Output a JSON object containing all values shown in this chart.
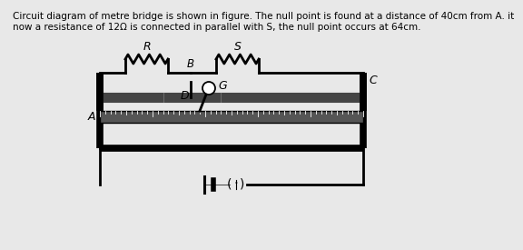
{
  "title_text": "Circuit diagram of metre bridge is shown in figure. The null point is found at a distance of 40cm from A. it\nnow a resistance of 12Ω is connected in parallel with S, the null point occurs at 64cm.",
  "title_fontsize": 7.5,
  "fig_bg": "#e8e8e8",
  "label_A": "A",
  "label_B": "B",
  "label_C": "C",
  "label_D": "D",
  "label_G": "G",
  "label_R": "R",
  "label_S": "S"
}
